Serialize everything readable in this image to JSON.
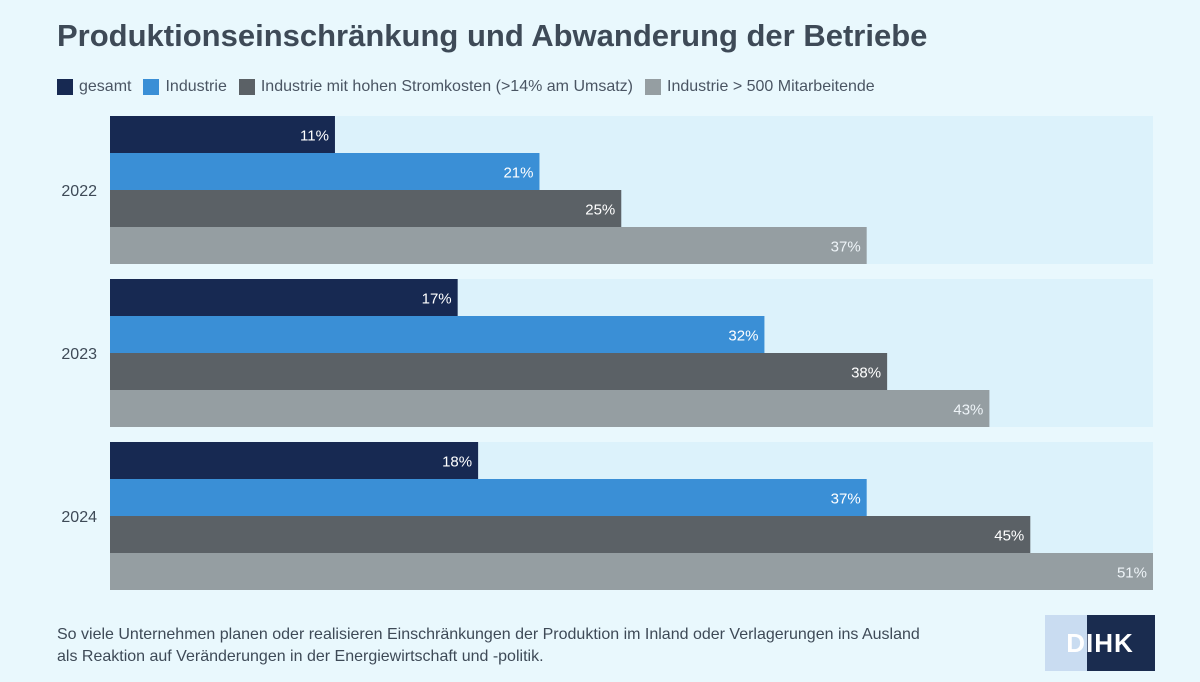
{
  "title": "Produktionseinschränkung und Abwanderung der Betriebe",
  "legend": [
    {
      "label": "gesamt",
      "color": "#172952"
    },
    {
      "label": "Industrie",
      "color": "#3a8fd6"
    },
    {
      "label": "Industrie mit hohen Stromkosten (>14% am Umsatz)",
      "color": "#5b6166"
    },
    {
      "label": "Industrie > 500 Mitarbeitende",
      "color": "#959ea2"
    }
  ],
  "footnote": {
    "line1": "So viele Unternehmen planen oder realisieren Einschränkungen der Produktion im Inland oder Verlagerungen ins Ausland",
    "line2": "als Reaktion auf Veränderungen in der Energiewirtschaft und -politik."
  },
  "logo": {
    "text": "DIHK"
  },
  "colors": {
    "background": "#e9f8fd",
    "group_band": "#dcf2fb",
    "label_on_dark": "#ffffff",
    "label_on_light": "#eef4f8"
  },
  "chart_data": {
    "type": "bar",
    "orientation": "horizontal",
    "categories": [
      "2022",
      "2023",
      "2024"
    ],
    "series": [
      {
        "name": "gesamt",
        "values": [
          11,
          17,
          18
        ],
        "labels": [
          "11%",
          "17%",
          "18%"
        ]
      },
      {
        "name": "Industrie",
        "values": [
          21,
          32,
          37
        ],
        "labels": [
          "21%",
          "32%",
          "37%"
        ]
      },
      {
        "name": "Industrie mit hohen Stromkosten (>14% am Umsatz)",
        "values": [
          25,
          38,
          45
        ],
        "labels": [
          "25%",
          "38%",
          "45%"
        ]
      },
      {
        "name": "Industrie > 500 Mitarbeitende",
        "values": [
          37,
          43,
          51
        ],
        "labels": [
          "37%",
          "43%",
          "51%"
        ]
      }
    ],
    "xlim": [
      0,
      51
    ],
    "unit": "%",
    "grid": false,
    "legend_position": "top"
  }
}
